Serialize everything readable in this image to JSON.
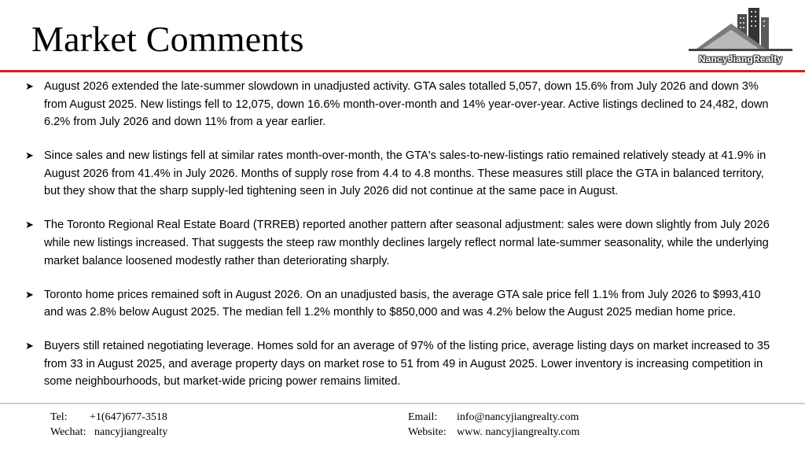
{
  "header": {
    "title": "Market Comments",
    "logo_text": "NancyJiangRealty",
    "logo_icon": "house-buildings-logo",
    "accent_color": "#d11f2a"
  },
  "bullets": [
    {
      "icon": "arrow-bullet-icon",
      "text": "August 2026 extended the late-summer slowdown in unadjusted activity. GTA sales totalled 5,057, down 15.6% from July 2026 and down 3% from August 2025. New listings fell to 12,075, down 16.6% month-over-month and 14% year-over-year. Active listings declined to 24,482, down 6.2% from July 2026 and down 11% from a year earlier."
    },
    {
      "icon": "arrow-bullet-icon",
      "text": "Since sales and new listings fell at similar rates month-over-month, the GTA's sales-to-new-listings ratio remained relatively steady at 41.9% in August 2026 from 41.4% in July 2026. Months of supply rose from 4.4 to 4.8 months. These measures still place the GTA in balanced territory, but they show that the sharp supply-led tightening seen in July 2026 did not continue at the same pace in August."
    },
    {
      "icon": "arrow-bullet-icon",
      "text": "The Toronto Regional Real Estate Board (TRREB) reported another pattern after seasonal adjustment: sales were down slightly from July 2026 while new listings increased. That suggests the steep raw monthly declines largely reflect normal late-summer seasonality, while the underlying market balance loosened modestly rather than deteriorating sharply."
    },
    {
      "icon": "arrow-bullet-icon",
      "text": "Toronto home prices remained soft in August 2026. On an unadjusted basis, the average GTA sale price fell 1.1% from July 2026 to $993,410 and was 2.8% below August 2025. The median fell 1.2% monthly to $850,000 and was 4.2% below the August 2025 median home price."
    },
    {
      "icon": "arrow-bullet-icon",
      "text": "Buyers still retained negotiating leverage. Homes sold for an average of 97% of the listing price, average listing days on market increased to 35 from 33 in August 2025, and average property days on market rose to 51 from 49 in August 2025. Lower inventory is increasing competition in some neighbourhoods, but market-wide pricing power remains limited."
    }
  ],
  "footer": {
    "tel_label": "Tel:",
    "tel_value": "+1(647)677-3518",
    "wechat_label": "Wechat:",
    "wechat_value": "nancyjiangrealty",
    "email_label": "Email:",
    "email_value": "info@nancyjiangrealty.com",
    "website_label": "Website:",
    "website_value": "www. nancyjiangrealty.com"
  }
}
